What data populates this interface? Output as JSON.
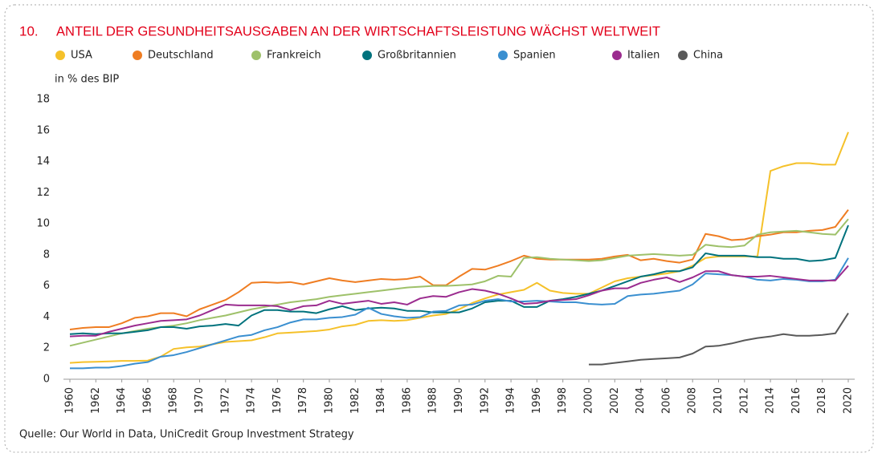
{
  "chart_number": "10.",
  "source": "Quelle: Our World in Data, UniCredit Group Investment Strategy",
  "chart_data": {
    "type": "line",
    "title": "ANTEIL DER GESUNDHEITSAUSGABEN AN DER WIRTSCHAFTSLEISTUNG WÄCHST WELTWEIT",
    "y_label": "in % des BIP",
    "x": [
      1960,
      1961,
      1962,
      1963,
      1964,
      1965,
      1966,
      1967,
      1968,
      1969,
      1970,
      1971,
      1972,
      1973,
      1974,
      1975,
      1976,
      1977,
      1978,
      1979,
      1980,
      1981,
      1982,
      1983,
      1984,
      1985,
      1986,
      1987,
      1988,
      1989,
      1990,
      1991,
      1992,
      1993,
      1994,
      1995,
      1996,
      1997,
      1998,
      1999,
      2000,
      2001,
      2002,
      2003,
      2004,
      2005,
      2006,
      2007,
      2008,
      2009,
      2010,
      2011,
      2012,
      2013,
      2014,
      2015,
      2016,
      2017,
      2018,
      2019,
      2020
    ],
    "xlim": [
      1960,
      2020
    ],
    "xticks": [
      1960,
      1962,
      1964,
      1966,
      1968,
      1970,
      1972,
      1974,
      1976,
      1978,
      1980,
      1982,
      1984,
      1986,
      1988,
      1990,
      1992,
      1994,
      1996,
      1998,
      2000,
      2002,
      2004,
      2006,
      2008,
      2010,
      2012,
      2014,
      2016,
      2018,
      2020
    ],
    "ylim": [
      0,
      18
    ],
    "yticks": [
      0,
      2,
      4,
      6,
      8,
      10,
      12,
      14,
      16,
      18
    ],
    "grid": false,
    "series": [
      {
        "name": "USA",
        "color": "#f5c12a",
        "values": [
          1.05,
          1.1,
          1.12,
          1.15,
          1.18,
          1.18,
          1.2,
          1.45,
          1.95,
          2.05,
          2.1,
          2.25,
          2.4,
          2.45,
          2.5,
          2.7,
          2.95,
          3.0,
          3.05,
          3.1,
          3.2,
          3.4,
          3.5,
          3.75,
          3.8,
          3.75,
          3.8,
          3.95,
          4.1,
          4.2,
          4.5,
          4.9,
          5.2,
          5.45,
          5.6,
          5.75,
          6.2,
          5.7,
          5.55,
          5.5,
          5.5,
          5.9,
          6.3,
          6.5,
          6.6,
          6.7,
          6.8,
          6.95,
          7.3,
          7.8,
          7.9,
          7.9,
          7.9,
          7.9,
          13.4,
          13.7,
          13.9,
          13.9,
          13.8,
          13.8,
          15.9
        ]
      },
      {
        "name": "Deutschland",
        "color": "#ef7d22",
        "values": [
          3.2,
          3.3,
          3.35,
          3.35,
          3.6,
          3.95,
          4.05,
          4.25,
          4.25,
          4.05,
          4.5,
          4.8,
          5.1,
          5.6,
          6.2,
          6.25,
          6.2,
          6.25,
          6.1,
          6.3,
          6.5,
          6.35,
          6.25,
          6.35,
          6.45,
          6.4,
          6.45,
          6.6,
          6.05,
          6.05,
          6.6,
          7.1,
          7.05,
          7.3,
          7.6,
          7.95,
          7.75,
          7.7,
          7.7,
          7.7,
          7.7,
          7.75,
          7.9,
          8.0,
          7.65,
          7.75,
          7.6,
          7.5,
          7.7,
          9.35,
          9.2,
          8.95,
          9.0,
          9.2,
          9.3,
          9.45,
          9.45,
          9.55,
          9.6,
          9.8,
          10.9
        ]
      },
      {
        "name": "Frankreich",
        "color": "#9ec16a",
        "values": [
          2.15,
          2.35,
          2.55,
          2.75,
          2.95,
          3.1,
          3.25,
          3.35,
          3.45,
          3.6,
          3.8,
          3.95,
          4.1,
          4.3,
          4.5,
          4.65,
          4.8,
          4.95,
          5.05,
          5.15,
          5.3,
          5.4,
          5.5,
          5.6,
          5.7,
          5.8,
          5.9,
          5.95,
          6.0,
          6.0,
          6.05,
          6.1,
          6.3,
          6.65,
          6.6,
          7.8,
          7.85,
          7.75,
          7.7,
          7.65,
          7.6,
          7.65,
          7.8,
          7.95,
          8.0,
          8.05,
          8.0,
          7.95,
          8.0,
          8.65,
          8.55,
          8.5,
          8.6,
          9.3,
          9.45,
          9.5,
          9.55,
          9.45,
          9.35,
          9.3,
          10.3
        ]
      },
      {
        "name": "Großbritannien",
        "color": "#00727d",
        "values": [
          2.9,
          2.95,
          2.9,
          2.95,
          2.95,
          3.05,
          3.15,
          3.35,
          3.35,
          3.25,
          3.4,
          3.45,
          3.55,
          3.45,
          4.1,
          4.45,
          4.45,
          4.35,
          4.35,
          4.25,
          4.5,
          4.7,
          4.45,
          4.55,
          4.6,
          4.55,
          4.4,
          4.4,
          4.3,
          4.3,
          4.3,
          4.55,
          4.95,
          5.05,
          5.05,
          4.65,
          4.65,
          5.05,
          5.15,
          5.3,
          5.5,
          5.7,
          6.0,
          6.3,
          6.6,
          6.75,
          6.95,
          6.95,
          7.2,
          8.1,
          7.95,
          7.95,
          7.95,
          7.85,
          7.85,
          7.75,
          7.75,
          7.6,
          7.65,
          7.8,
          9.9
        ]
      },
      {
        "name": "Spanien",
        "color": "#3a8fd0",
        "values": [
          0.7,
          0.7,
          0.75,
          0.75,
          0.85,
          1.0,
          1.1,
          1.45,
          1.55,
          1.75,
          2.0,
          2.25,
          2.5,
          2.75,
          2.85,
          3.15,
          3.35,
          3.65,
          3.85,
          3.85,
          3.95,
          4.0,
          4.15,
          4.6,
          4.2,
          4.05,
          3.95,
          4.0,
          4.35,
          4.4,
          4.75,
          4.8,
          5.05,
          5.15,
          5.0,
          5.0,
          5.05,
          5.0,
          4.95,
          4.95,
          4.85,
          4.8,
          4.85,
          5.35,
          5.45,
          5.5,
          5.6,
          5.7,
          6.1,
          6.8,
          6.75,
          6.7,
          6.6,
          6.4,
          6.35,
          6.45,
          6.4,
          6.3,
          6.3,
          6.4,
          7.8
        ]
      },
      {
        "name": "Italien",
        "color": "#9b2c8f",
        "values": [
          2.75,
          2.8,
          2.8,
          3.05,
          3.25,
          3.45,
          3.6,
          3.75,
          3.8,
          3.85,
          4.1,
          4.45,
          4.8,
          4.75,
          4.75,
          4.75,
          4.7,
          4.45,
          4.7,
          4.75,
          5.05,
          4.85,
          4.95,
          5.05,
          4.85,
          4.95,
          4.8,
          5.2,
          5.35,
          5.3,
          5.6,
          5.8,
          5.7,
          5.5,
          5.2,
          4.85,
          4.9,
          5.05,
          5.1,
          5.15,
          5.4,
          5.7,
          5.85,
          5.85,
          6.2,
          6.4,
          6.55,
          6.25,
          6.55,
          6.95,
          6.95,
          6.7,
          6.6,
          6.6,
          6.65,
          6.55,
          6.45,
          6.35,
          6.35,
          6.35,
          7.3
        ]
      },
      {
        "name": "China",
        "color": "#595959",
        "values": [
          null,
          null,
          null,
          null,
          null,
          null,
          null,
          null,
          null,
          null,
          null,
          null,
          null,
          null,
          null,
          null,
          null,
          null,
          null,
          null,
          null,
          null,
          null,
          null,
          null,
          null,
          null,
          null,
          null,
          null,
          null,
          null,
          null,
          null,
          null,
          null,
          null,
          null,
          null,
          null,
          0.95,
          0.95,
          1.05,
          1.15,
          1.25,
          1.3,
          1.35,
          1.4,
          1.65,
          2.1,
          2.15,
          2.3,
          2.5,
          2.65,
          2.75,
          2.9,
          2.8,
          2.8,
          2.85,
          2.95,
          4.25
        ]
      }
    ]
  }
}
